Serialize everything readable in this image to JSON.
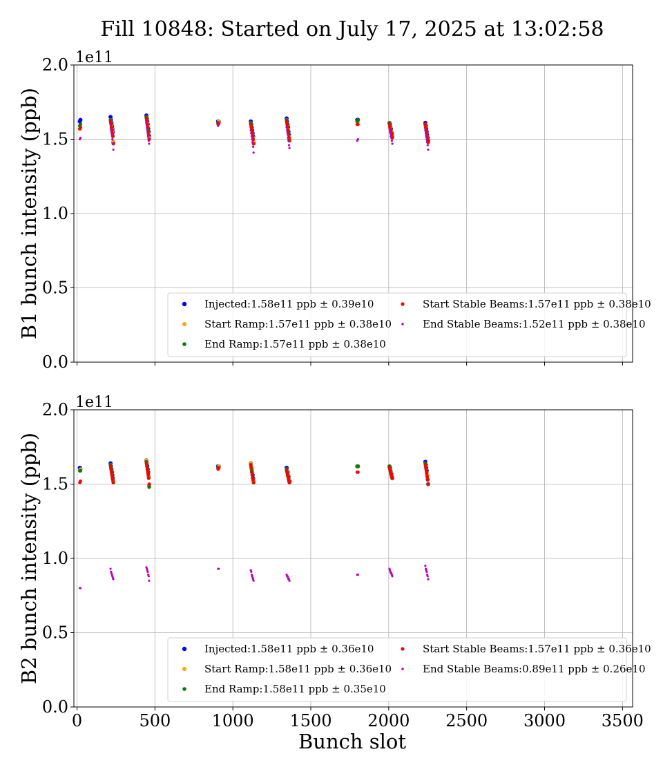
{
  "title": "Fill 10848: Started on July 17, 2025 at 13:02:58",
  "colors": {
    "injected": "#0000ff",
    "start_ramp": "#ffa500",
    "end_ramp": "#008000",
    "start_stable": "#ff0000",
    "end_stable": "#bf00bf",
    "grid": "#b0b0b0",
    "axis": "#000000"
  },
  "chart_data": [
    {
      "type": "scatter",
      "ylabel": "B1 bunch intensity (ppb)",
      "offset_label": "1e11",
      "xlim": [
        -20,
        3565
      ],
      "ylim": [
        0.0,
        2.0
      ],
      "xticks": [
        0,
        500,
        1000,
        1500,
        2000,
        2500,
        3000,
        3500
      ],
      "xtick_labels": [],
      "yticks": [
        0.0,
        0.5,
        1.0,
        1.5,
        2.0
      ],
      "ytick_labels": [
        "0.0",
        "0.5",
        "1.0",
        "1.5",
        "2.0"
      ],
      "grid": true,
      "legend_position": "lower-right",
      "bunch_groups": [
        {
          "x": [
            18,
            22
          ],
          "injected": [
            1.62,
            1.63
          ],
          "start_ramp": [
            1.57,
            1.58
          ],
          "end_ramp": [
            1.59,
            1.6
          ],
          "start_stable": [
            1.57,
            1.58
          ],
          "end_stable": [
            1.5,
            1.51
          ]
        },
        {
          "x": [
            215,
            218,
            221,
            224,
            227,
            230,
            233
          ],
          "injected": [
            1.65,
            1.63,
            1.61,
            1.59,
            1.57,
            1.55,
            1.48
          ],
          "start_ramp": [
            1.63,
            1.61,
            1.59,
            1.57,
            1.55,
            1.53,
            1.48
          ],
          "end_ramp": [
            1.63,
            1.61,
            1.58,
            1.56,
            1.54,
            1.52,
            1.47
          ],
          "start_stable": [
            1.62,
            1.6,
            1.58,
            1.56,
            1.54,
            1.52,
            1.47
          ],
          "end_stable": [
            1.6,
            1.57,
            1.55,
            1.53,
            1.5,
            1.47,
            1.43
          ]
        },
        {
          "x": [
            445,
            448,
            451,
            454,
            457,
            460,
            463
          ],
          "injected": [
            1.66,
            1.64,
            1.62,
            1.6,
            1.57,
            1.55,
            1.52
          ],
          "start_ramp": [
            1.65,
            1.63,
            1.61,
            1.59,
            1.56,
            1.54,
            1.51
          ],
          "end_ramp": [
            1.65,
            1.63,
            1.6,
            1.58,
            1.56,
            1.53,
            1.5
          ],
          "start_stable": [
            1.64,
            1.62,
            1.6,
            1.58,
            1.55,
            1.53,
            1.5
          ],
          "end_stable": [
            1.61,
            1.59,
            1.57,
            1.54,
            1.52,
            1.49,
            1.47
          ]
        },
        {
          "x": [
            905,
            910
          ],
          "injected": [
            1.62,
            1.62
          ],
          "start_ramp": [
            1.61,
            1.62
          ],
          "end_ramp": [
            1.61,
            1.61
          ],
          "start_stable": [
            1.6,
            1.61
          ],
          "end_stable": [
            1.59,
            1.6
          ]
        },
        {
          "x": [
            1115,
            1118,
            1121,
            1124,
            1127,
            1130,
            1133
          ],
          "injected": [
            1.62,
            1.6,
            1.58,
            1.56,
            1.54,
            1.52,
            1.48
          ],
          "start_ramp": [
            1.61,
            1.59,
            1.57,
            1.55,
            1.53,
            1.51,
            1.48
          ],
          "end_ramp": [
            1.61,
            1.59,
            1.57,
            1.55,
            1.53,
            1.5,
            1.47
          ],
          "start_stable": [
            1.6,
            1.58,
            1.56,
            1.54,
            1.52,
            1.5,
            1.47
          ],
          "end_stable": [
            1.56,
            1.54,
            1.52,
            1.5,
            1.48,
            1.45,
            1.41
          ]
        },
        {
          "x": [
            1345,
            1348,
            1351,
            1354,
            1357,
            1360,
            1363
          ],
          "injected": [
            1.64,
            1.62,
            1.6,
            1.58,
            1.55,
            1.53,
            1.5
          ],
          "start_ramp": [
            1.63,
            1.61,
            1.59,
            1.57,
            1.54,
            1.52,
            1.5
          ],
          "end_ramp": [
            1.63,
            1.61,
            1.59,
            1.56,
            1.54,
            1.51,
            1.49
          ],
          "start_stable": [
            1.62,
            1.6,
            1.58,
            1.56,
            1.53,
            1.51,
            1.49
          ],
          "end_stable": [
            1.58,
            1.56,
            1.54,
            1.51,
            1.49,
            1.46,
            1.44
          ]
        },
        {
          "x": [
            1798,
            1803
          ],
          "injected": [
            1.63,
            1.63
          ],
          "start_ramp": [
            1.62,
            1.62
          ],
          "end_ramp": [
            1.62,
            1.63
          ],
          "start_stable": [
            1.6,
            1.6
          ],
          "end_stable": [
            1.49,
            1.5
          ]
        },
        {
          "x": [
            2005,
            2008,
            2011,
            2014,
            2017,
            2020,
            2023
          ],
          "injected": [
            1.61,
            1.6,
            1.58,
            1.57,
            1.55,
            1.54,
            1.52
          ],
          "start_ramp": [
            1.61,
            1.59,
            1.58,
            1.56,
            1.55,
            1.53,
            1.52
          ],
          "end_ramp": [
            1.61,
            1.59,
            1.57,
            1.56,
            1.54,
            1.53,
            1.51
          ],
          "start_stable": [
            1.6,
            1.58,
            1.57,
            1.55,
            1.54,
            1.52,
            1.51
          ],
          "end_stable": [
            1.57,
            1.55,
            1.54,
            1.52,
            1.51,
            1.49,
            1.47
          ]
        },
        {
          "x": [
            2235,
            2238,
            2241,
            2244,
            2247,
            2250,
            2253
          ],
          "injected": [
            1.61,
            1.59,
            1.57,
            1.55,
            1.53,
            1.51,
            1.49
          ],
          "start_ramp": [
            1.6,
            1.58,
            1.56,
            1.54,
            1.52,
            1.5,
            1.48
          ],
          "end_ramp": [
            1.6,
            1.58,
            1.56,
            1.54,
            1.52,
            1.5,
            1.48
          ],
          "start_stable": [
            1.6,
            1.58,
            1.56,
            1.54,
            1.52,
            1.5,
            1.48
          ],
          "end_stable": [
            1.56,
            1.54,
            1.52,
            1.5,
            1.48,
            1.46,
            1.43
          ]
        }
      ],
      "legend": [
        {
          "key": "injected",
          "label": "Injected:1.58e11 ppb ± 0.39e10",
          "col": 0,
          "row": 0
        },
        {
          "key": "start_ramp",
          "label": "Start Ramp:1.57e11 ppb ± 0.38e10",
          "col": 0,
          "row": 1
        },
        {
          "key": "end_ramp",
          "label": "End Ramp:1.57e11 ppb ± 0.38e10",
          "col": 0,
          "row": 2
        },
        {
          "key": "start_stable",
          "label": "Start Stable Beams:1.57e11 ppb ± 0.38e10",
          "col": 1,
          "row": 0
        },
        {
          "key": "end_stable",
          "label": "End Stable Beams:1.52e11 ppb ± 0.38e10",
          "col": 1,
          "row": 1
        }
      ]
    },
    {
      "type": "scatter",
      "ylabel": "B2 bunch intensity (ppb)",
      "xlabel": "Bunch slot",
      "offset_label": "1e11",
      "xlim": [
        -20,
        3565
      ],
      "ylim": [
        0.0,
        2.0
      ],
      "xticks": [
        0,
        500,
        1000,
        1500,
        2000,
        2500,
        3000,
        3500
      ],
      "xtick_labels": [
        "0",
        "500",
        "1000",
        "1500",
        "2000",
        "2500",
        "3000",
        "3500"
      ],
      "yticks": [
        0.0,
        0.5,
        1.0,
        1.5,
        2.0
      ],
      "ytick_labels": [
        "0.0",
        "0.5",
        "1.0",
        "1.5",
        "2.0"
      ],
      "grid": true,
      "legend_position": "lower-right",
      "bunch_groups": [
        {
          "x": [
            18,
            22
          ],
          "injected": [
            1.61,
            1.6
          ],
          "start_ramp": [
            1.59,
            1.6
          ],
          "end_ramp": [
            1.59,
            1.59
          ],
          "start_stable": [
            1.51,
            1.52
          ],
          "end_stable": [
            0.8,
            0.8
          ]
        },
        {
          "x": [
            215,
            218,
            221,
            224,
            227,
            230,
            233
          ],
          "injected": [
            1.64,
            1.62,
            1.6,
            1.58,
            1.56,
            1.54,
            1.52
          ],
          "start_ramp": [
            1.63,
            1.61,
            1.59,
            1.57,
            1.55,
            1.53,
            1.52
          ],
          "end_ramp": [
            1.63,
            1.61,
            1.59,
            1.57,
            1.55,
            1.53,
            1.51
          ],
          "start_stable": [
            1.62,
            1.6,
            1.58,
            1.56,
            1.54,
            1.53,
            1.51
          ],
          "end_stable": [
            0.93,
            0.91,
            0.9,
            0.89,
            0.88,
            0.87,
            0.86
          ]
        },
        {
          "x": [
            445,
            448,
            451,
            454,
            457,
            460,
            463
          ],
          "injected": [
            1.66,
            1.64,
            1.62,
            1.6,
            1.58,
            1.55,
            1.49
          ],
          "start_ramp": [
            1.66,
            1.64,
            1.61,
            1.59,
            1.57,
            1.55,
            1.49
          ],
          "end_ramp": [
            1.65,
            1.63,
            1.61,
            1.59,
            1.57,
            1.54,
            1.48
          ],
          "start_stable": [
            1.64,
            1.62,
            1.6,
            1.58,
            1.56,
            1.54,
            1.5
          ],
          "end_stable": [
            0.94,
            0.93,
            0.92,
            0.91,
            0.89,
            0.88,
            0.85
          ]
        },
        {
          "x": [
            905,
            910
          ],
          "injected": [
            1.62,
            1.62
          ],
          "start_ramp": [
            1.61,
            1.62
          ],
          "end_ramp": [
            1.61,
            1.61
          ],
          "start_stable": [
            1.6,
            1.61
          ],
          "end_stable": [
            0.93,
            0.93
          ]
        },
        {
          "x": [
            1115,
            1118,
            1121,
            1124,
            1127,
            1130,
            1133
          ],
          "injected": [
            1.64,
            1.62,
            1.6,
            1.58,
            1.56,
            1.54,
            1.52
          ],
          "start_ramp": [
            1.64,
            1.62,
            1.6,
            1.58,
            1.55,
            1.53,
            1.52
          ],
          "end_ramp": [
            1.63,
            1.61,
            1.59,
            1.57,
            1.55,
            1.53,
            1.51
          ],
          "start_stable": [
            1.63,
            1.61,
            1.58,
            1.56,
            1.54,
            1.53,
            1.51
          ],
          "end_stable": [
            0.92,
            0.91,
            0.89,
            0.88,
            0.87,
            0.86,
            0.85
          ]
        },
        {
          "x": [
            1345,
            1348,
            1351,
            1354,
            1357,
            1360,
            1363
          ],
          "injected": [
            1.61,
            1.59,
            1.58,
            1.56,
            1.55,
            1.53,
            1.52
          ],
          "start_ramp": [
            1.6,
            1.59,
            1.57,
            1.56,
            1.54,
            1.53,
            1.51
          ],
          "end_ramp": [
            1.6,
            1.58,
            1.57,
            1.55,
            1.54,
            1.52,
            1.51
          ],
          "start_stable": [
            1.59,
            1.58,
            1.56,
            1.55,
            1.53,
            1.52,
            1.51
          ],
          "end_stable": [
            0.89,
            0.88,
            0.88,
            0.87,
            0.86,
            0.86,
            0.85
          ]
        },
        {
          "x": [
            1798,
            1803
          ],
          "injected": [
            1.62,
            1.62
          ],
          "start_ramp": [
            1.62,
            1.62
          ],
          "end_ramp": [
            1.62,
            1.62
          ],
          "start_stable": [
            1.58,
            1.58
          ],
          "end_stable": [
            0.89,
            0.89
          ]
        },
        {
          "x": [
            2005,
            2008,
            2011,
            2014,
            2017,
            2020,
            2023
          ],
          "injected": [
            1.62,
            1.61,
            1.59,
            1.58,
            1.57,
            1.55,
            1.54
          ],
          "start_ramp": [
            1.62,
            1.6,
            1.59,
            1.58,
            1.56,
            1.55,
            1.54
          ],
          "end_ramp": [
            1.62,
            1.6,
            1.59,
            1.57,
            1.56,
            1.55,
            1.54
          ],
          "start_stable": [
            1.61,
            1.6,
            1.58,
            1.57,
            1.56,
            1.55,
            1.54
          ],
          "end_stable": [
            0.93,
            0.92,
            0.91,
            0.9,
            0.9,
            0.89,
            0.88
          ]
        },
        {
          "x": [
            2235,
            2238,
            2241,
            2244,
            2247,
            2250,
            2253
          ],
          "injected": [
            1.65,
            1.63,
            1.61,
            1.59,
            1.56,
            1.53,
            1.5
          ],
          "start_ramp": [
            1.64,
            1.62,
            1.6,
            1.58,
            1.56,
            1.53,
            1.5
          ],
          "end_ramp": [
            1.64,
            1.62,
            1.6,
            1.58,
            1.55,
            1.53,
            1.5
          ],
          "start_stable": [
            1.63,
            1.61,
            1.59,
            1.57,
            1.55,
            1.53,
            1.5
          ],
          "end_stable": [
            0.95,
            0.93,
            0.92,
            0.91,
            0.89,
            0.88,
            0.86
          ]
        }
      ],
      "legend": [
        {
          "key": "injected",
          "label": "Injected:1.58e11 ppb ± 0.36e10",
          "col": 0,
          "row": 0
        },
        {
          "key": "start_ramp",
          "label": "Start Ramp:1.58e11 ppb ± 0.36e10",
          "col": 0,
          "row": 1
        },
        {
          "key": "end_ramp",
          "label": "End Ramp:1.58e11 ppb ± 0.35e10",
          "col": 0,
          "row": 2
        },
        {
          "key": "start_stable",
          "label": "Start Stable Beams:1.57e11 ppb ± 0.36e10",
          "col": 1,
          "row": 0
        },
        {
          "key": "end_stable",
          "label": "End Stable Beams:0.89e11 ppb ± 0.26e10",
          "col": 1,
          "row": 1
        }
      ]
    }
  ]
}
